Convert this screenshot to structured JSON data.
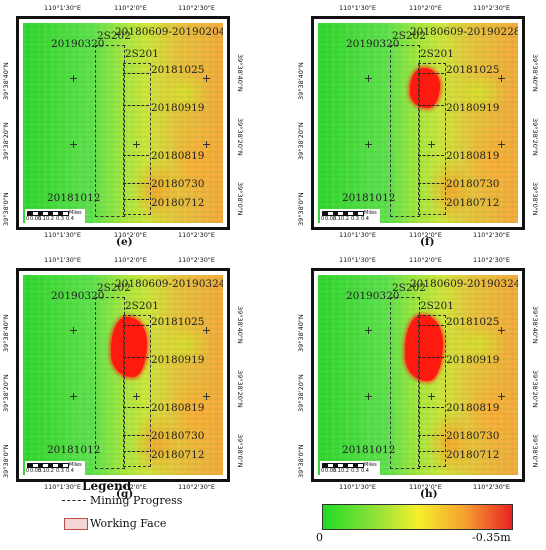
{
  "panels": [
    {
      "id": "e",
      "caption": "(e)",
      "period": "20180609-20190204",
      "labels": {
        "ws2s202": "2S202",
        "ws2s201": "2S201",
        "left_date": "20190320",
        "bottom_date": "20181012",
        "d1": "20181025",
        "d2": "20180919",
        "d3": "20180819",
        "d4": "20180730",
        "d5": "20180712"
      }
    },
    {
      "id": "f",
      "caption": "(f)",
      "period": "20180609-20190228",
      "labels": {
        "ws2s202": "2S202",
        "ws2s201": "2S201",
        "left_date": "20190320",
        "bottom_date": "20181012",
        "d1": "20181025",
        "d2": "20180919",
        "d3": "20180819",
        "d4": "20180730",
        "d5": "20180712"
      }
    },
    {
      "id": "g",
      "caption": "(g)",
      "period": "20180609-20190324",
      "labels": {
        "ws2s202": "2S202",
        "ws2s201": "2S201",
        "left_date": "20190320",
        "bottom_date": "20181012",
        "d1": "20181025",
        "d2": "20180919",
        "d3": "20180819",
        "d4": "20180730",
        "d5": "20180712"
      }
    },
    {
      "id": "h",
      "caption": "(h)",
      "period": "20180609-20190324",
      "labels": {
        "ws2s202": "2S202",
        "ws2s201": "2S201",
        "left_date": "20190320",
        "bottom_date": "20181012",
        "d1": "20181025",
        "d2": "20180919",
        "d3": "20180819",
        "d4": "20180730",
        "d5": "20180712"
      }
    }
  ],
  "axes": {
    "lon": [
      "110°1'30\"E",
      "110°2'0\"E",
      "110°2'30\"E"
    ],
    "lat": [
      "39°38'40\"N",
      "39°38'20\"N",
      "39°38'0\"N"
    ]
  },
  "scalebar": {
    "units": "Miles",
    "ticks": [
      "0",
      "0.05",
      "0.1",
      "0.2",
      "0.3",
      "0.4"
    ]
  },
  "legend": {
    "title": "Legend",
    "mining_progress": "Mining Progress",
    "working_face": "Working Face"
  },
  "colorbar": {
    "min_label": "0",
    "max_label": "-0.35m",
    "colors": [
      "#1fdc25",
      "#9ae23a",
      "#f5f02a",
      "#f7a030",
      "#e82323"
    ]
  }
}
